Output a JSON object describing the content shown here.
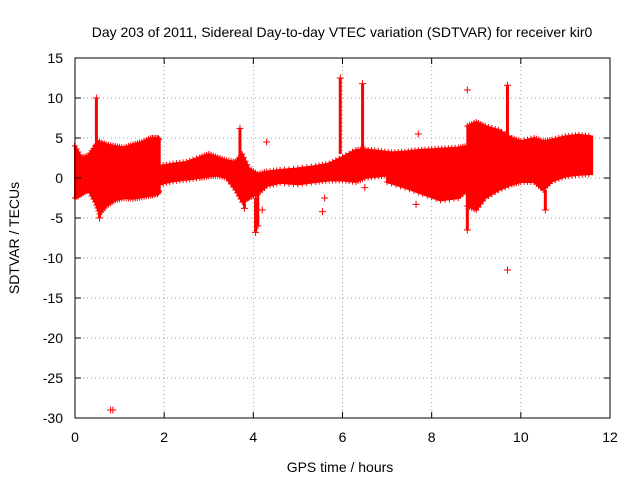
{
  "chart_data": {
    "type": "scatter",
    "title": "Day 203 of 2011, Sidereal Day-to-day VTEC variation (SDTVAR) for receiver kir0",
    "xlabel": "GPS time / hours",
    "ylabel": "SDTVAR / TECUs",
    "xlim": [
      0,
      12
    ],
    "ylim": [
      -30,
      15
    ],
    "x_ticks": [
      0,
      2,
      4,
      6,
      8,
      10,
      12
    ],
    "y_ticks": [
      15,
      10,
      5,
      0,
      -5,
      -10,
      -15,
      -20,
      -25,
      -30
    ],
    "grid": true,
    "marker": "+",
    "series": [
      {
        "name": "SDTVAR",
        "color": "#ff0000",
        "bands": [
          {
            "x": [
              0.0,
              0.15,
              0.3,
              0.45,
              0.55,
              0.7,
              0.9,
              1.1,
              1.3,
              1.5,
              1.7,
              1.85,
              1.9
            ],
            "lo": [
              -2.5,
              -2.0,
              -1.5,
              -3.0,
              -4.5,
              -3.5,
              -2.8,
              -2.5,
              -2.6,
              -2.4,
              -2.2,
              -2.0,
              -1.5
            ],
            "hi": [
              4.0,
              2.5,
              2.8,
              4.0,
              4.5,
              4.2,
              4.0,
              3.8,
              4.2,
              4.5,
              5.0,
              5.0,
              4.8
            ]
          },
          {
            "x": [
              1.9,
              2.2,
              2.5,
              2.8,
              3.0,
              3.2,
              3.4,
              3.6,
              3.75,
              3.9,
              4.1,
              4.3,
              4.6,
              5.0,
              5.4,
              5.7,
              6.0,
              6.3,
              6.5,
              6.8,
              7.1,
              7.4,
              7.7,
              8.0,
              8.3,
              8.6,
              8.8
            ],
            "lo": [
              -0.8,
              -0.4,
              -0.2,
              0.0,
              0.2,
              0.3,
              0.0,
              -1.5,
              -3.0,
              -2.5,
              -2.0,
              -1.0,
              -0.6,
              -0.8,
              -0.5,
              -0.3,
              -0.3,
              -0.5,
              0.0,
              0.2,
              0.4,
              -0.2,
              -0.6,
              -0.8,
              -1.0,
              -1.2,
              -1.5
            ],
            "hi": [
              1.5,
              1.8,
              2.0,
              2.6,
              3.0,
              2.6,
              2.2,
              2.0,
              3.0,
              1.2,
              0.5,
              0.8,
              1.0,
              1.2,
              1.5,
              1.8,
              2.6,
              3.5,
              3.6,
              3.4,
              3.2,
              3.3,
              3.5,
              3.6,
              3.7,
              3.8,
              4.0
            ]
          },
          {
            "x": [
              7.0,
              7.4,
              7.8,
              8.2,
              8.6,
              8.8
            ],
            "lo": [
              -0.5,
              -1.2,
              -2.0,
              -2.8,
              -2.5,
              -1.5
            ],
            "hi": [
              2.0,
              1.5,
              0.5,
              0.0,
              1.0,
              2.0
            ]
          },
          {
            "x": [
              8.8,
              9.0,
              9.2,
              9.5,
              9.8,
              10.0,
              10.3,
              10.5,
              10.7,
              11.0,
              11.3,
              11.6
            ],
            "lo": [
              -3.5,
              -4.0,
              -2.5,
              -1.5,
              -0.8,
              -0.5,
              -0.5,
              -1.5,
              -0.4,
              0.2,
              0.4,
              0.5
            ],
            "hi": [
              6.5,
              7.0,
              6.5,
              6.0,
              5.0,
              4.6,
              5.0,
              4.6,
              4.8,
              5.2,
              5.4,
              5.2
            ]
          }
        ],
        "spikes": [
          {
            "x": 0.48,
            "y_from": 2.0,
            "y_to": 10.0
          },
          {
            "x": 0.55,
            "y_from": -2.0,
            "y_to": -5.0
          },
          {
            "x": 3.7,
            "y_from": 2.0,
            "y_to": 6.2
          },
          {
            "x": 3.8,
            "y_from": -1.0,
            "y_to": -3.8
          },
          {
            "x": 4.05,
            "y_from": -2.5,
            "y_to": -6.8
          },
          {
            "x": 4.1,
            "y_from": -2.0,
            "y_to": -6.0
          },
          {
            "x": 5.95,
            "y_from": 3.0,
            "y_to": 12.5
          },
          {
            "x": 6.45,
            "y_from": 3.0,
            "y_to": 11.8
          },
          {
            "x": 8.8,
            "y_from": -1.5,
            "y_to": -6.5
          },
          {
            "x": 9.7,
            "y_from": 4.0,
            "y_to": 11.6
          },
          {
            "x": 10.55,
            "y_from": -1.5,
            "y_to": -4.0
          }
        ],
        "points": [
          [
            0.8,
            -29.0
          ],
          [
            0.85,
            -29.0
          ],
          [
            8.8,
            11.0
          ],
          [
            9.7,
            -11.5
          ],
          [
            4.3,
            4.5
          ],
          [
            5.55,
            -4.2
          ],
          [
            5.6,
            -2.5
          ],
          [
            6.5,
            -1.2
          ],
          [
            7.65,
            -3.3
          ],
          [
            7.7,
            5.5
          ],
          [
            4.2,
            -4.0
          ]
        ]
      }
    ]
  }
}
